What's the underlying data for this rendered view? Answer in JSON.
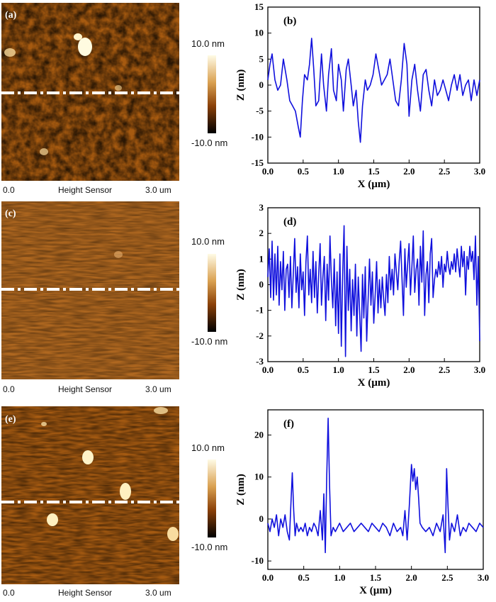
{
  "afm_panels": [
    {
      "letter": "(a)",
      "scale_top": "10.0 nm",
      "scale_bottom": "-10.0 nm",
      "x_start": "0.0",
      "x_title": "Height Sensor",
      "x_end": "3.0 um"
    },
    {
      "letter": "(c)",
      "scale_top": "10.0 nm",
      "scale_bottom": "-10.0 nm",
      "x_start": "0.0",
      "x_title": "Height Sensor",
      "x_end": "3.0 um"
    },
    {
      "letter": "(e)",
      "scale_top": "10.0 nm",
      "scale_bottom": "-10.0 nm",
      "x_start": "0.0",
      "x_title": "Height Sensor",
      "x_end": "3.0 um"
    }
  ],
  "chart_data": [
    {
      "type": "line",
      "panel": "(b)",
      "xlabel": "X (µm)",
      "ylabel": "Z (nm)",
      "xlim": [
        0,
        3
      ],
      "ylim": [
        -15,
        15
      ],
      "xticks": [
        0,
        0.5,
        1,
        1.5,
        2,
        2.5,
        3
      ],
      "xtick_labels": [
        "0.0",
        "0.5",
        "1.0",
        "1.5",
        "2.0",
        "2.5",
        "3.0"
      ],
      "yticks": [
        -15,
        -10,
        -5,
        0,
        5,
        10,
        15
      ],
      "ytick_labels": [
        "-15",
        "-10",
        "-5",
        "0",
        "5",
        "10",
        "15"
      ],
      "color": "#1010dd",
      "x": [
        0,
        0.03,
        0.06,
        0.1,
        0.14,
        0.18,
        0.22,
        0.27,
        0.31,
        0.35,
        0.39,
        0.43,
        0.46,
        0.49,
        0.52,
        0.56,
        0.59,
        0.62,
        0.65,
        0.68,
        0.72,
        0.76,
        0.79,
        0.83,
        0.86,
        0.9,
        0.93,
        0.97,
        1.0,
        1.04,
        1.07,
        1.11,
        1.14,
        1.18,
        1.21,
        1.25,
        1.28,
        1.31,
        1.34,
        1.38,
        1.41,
        1.45,
        1.49,
        1.53,
        1.57,
        1.61,
        1.65,
        1.69,
        1.73,
        1.77,
        1.81,
        1.85,
        1.89,
        1.93,
        1.97,
        2.0,
        2.04,
        2.08,
        2.12,
        2.16,
        2.2,
        2.24,
        2.28,
        2.32,
        2.36,
        2.4,
        2.44,
        2.48,
        2.52,
        2.56,
        2.6,
        2.64,
        2.68,
        2.72,
        2.76,
        2.8,
        2.84,
        2.88,
        2.92,
        2.96,
        3.0
      ],
      "y": [
        1,
        4,
        6,
        1,
        -1,
        0,
        5,
        1,
        -3,
        -4,
        -5,
        -8,
        -10,
        -3,
        2,
        1,
        4,
        9,
        3,
        -4,
        -3,
        6,
        0,
        -5,
        2,
        7,
        -1,
        -3,
        4,
        1,
        -5,
        3,
        5,
        0,
        -4,
        -1,
        -7,
        -11,
        -4,
        1,
        -1,
        0,
        2,
        6,
        3,
        0,
        1,
        2,
        5,
        1,
        -3,
        -4,
        1,
        8,
        4,
        -6,
        1,
        4,
        -1,
        -5,
        2,
        3,
        -1,
        -4,
        1,
        -2,
        -1,
        1,
        -1,
        -3,
        0,
        2,
        -1,
        2,
        -2,
        0,
        1,
        -3,
        1,
        -2,
        1
      ]
    },
    {
      "type": "line",
      "panel": "(d)",
      "xlabel": "X (µm)",
      "ylabel": "Z (nm)",
      "xlim": [
        0,
        3
      ],
      "ylim": [
        -3,
        3
      ],
      "xticks": [
        0,
        0.5,
        1,
        1.5,
        2,
        2.5,
        3
      ],
      "xtick_labels": [
        "0.0",
        "0.5",
        "1.0",
        "1.5",
        "2.0",
        "2.5",
        "3.0"
      ],
      "yticks": [
        -3,
        -2,
        -1,
        0,
        1,
        2,
        3
      ],
      "ytick_labels": [
        "-3",
        "-2",
        "-1",
        "0",
        "1",
        "2",
        "3"
      ],
      "color": "#1010dd",
      "x": [
        0,
        0.02,
        0.04,
        0.06,
        0.08,
        0.1,
        0.12,
        0.14,
        0.16,
        0.18,
        0.2,
        0.22,
        0.24,
        0.26,
        0.28,
        0.3,
        0.32,
        0.34,
        0.36,
        0.38,
        0.4,
        0.42,
        0.44,
        0.46,
        0.48,
        0.5,
        0.52,
        0.54,
        0.56,
        0.58,
        0.6,
        0.62,
        0.64,
        0.66,
        0.68,
        0.7,
        0.72,
        0.74,
        0.76,
        0.78,
        0.8,
        0.82,
        0.84,
        0.86,
        0.88,
        0.9,
        0.92,
        0.94,
        0.96,
        0.98,
        1.0,
        1.02,
        1.04,
        1.06,
        1.08,
        1.1,
        1.12,
        1.14,
        1.16,
        1.18,
        1.2,
        1.22,
        1.24,
        1.26,
        1.28,
        1.3,
        1.32,
        1.34,
        1.36,
        1.38,
        1.4,
        1.42,
        1.44,
        1.46,
        1.48,
        1.5,
        1.52,
        1.54,
        1.56,
        1.58,
        1.6,
        1.62,
        1.64,
        1.66,
        1.68,
        1.7,
        1.72,
        1.74,
        1.76,
        1.78,
        1.8,
        1.82,
        1.84,
        1.86,
        1.88,
        1.9,
        1.92,
        1.94,
        1.96,
        1.98,
        2.0,
        2.02,
        2.04,
        2.06,
        2.08,
        2.1,
        2.12,
        2.14,
        2.16,
        2.18,
        2.2,
        2.22,
        2.24,
        2.26,
        2.28,
        2.3,
        2.32,
        2.34,
        2.36,
        2.38,
        2.4,
        2.42,
        2.44,
        2.46,
        2.48,
        2.5,
        2.52,
        2.54,
        2.56,
        2.58,
        2.6,
        2.62,
        2.64,
        2.66,
        2.68,
        2.7,
        2.72,
        2.74,
        2.76,
        2.78,
        2.8,
        2.82,
        2.84,
        2.86,
        2.88,
        2.9,
        2.92,
        2.94,
        2.96,
        2.98,
        3.0
      ],
      "y": [
        0.3,
        1.4,
        -0.5,
        1.7,
        -0.6,
        1.2,
        -0.4,
        1.5,
        -0.8,
        0.9,
        -0.2,
        1.3,
        -1.0,
        0.6,
        0.8,
        -0.5,
        1.1,
        -0.9,
        0.4,
        1.8,
        -0.3,
        0.7,
        -0.9,
        1.2,
        -0.2,
        0.5,
        -1.2,
        0.9,
        1.9,
        -0.4,
        0.6,
        -0.7,
        1.3,
        -0.5,
        0.9,
        -1.1,
        0.4,
        1.6,
        -0.8,
        0.3,
        1.1,
        -1.4,
        0.8,
        -0.6,
        1.9,
        0.2,
        -0.9,
        1.0,
        -1.6,
        0.5,
        -1.9,
        1.2,
        -2.4,
        0.4,
        2.3,
        -2.8,
        1.5,
        -1.0,
        0.6,
        -1.8,
        0.2,
        -1.2,
        0.8,
        -2.0,
        0.3,
        -1.1,
        -2.6,
        0.4,
        -1.3,
        0.7,
        -2.2,
        -0.6,
        1.0,
        -0.8,
        0.5,
        -1.5,
        -0.4,
        0.9,
        -1.1,
        0.2,
        -0.9,
        0.3,
        -0.6,
        -1.2,
        0.4,
        -0.7,
        1.1,
        -0.2,
        0.6,
        -0.4,
        1.2,
        0.5,
        -0.2,
        0.9,
        1.7,
        0.2,
        -1.2,
        1.4,
        -0.1,
        0.8,
        1.6,
        -0.4,
        0.7,
        1.9,
        -0.3,
        0.6,
        1.0,
        -0.8,
        1.5,
        0.1,
        2.1,
        -1.2,
        0.4,
        0.9,
        -0.7,
        1.2,
        1.8,
        -0.5,
        0.2,
        0.6,
        0.3,
        0.9,
        0.4,
        1.1,
        -0.1,
        0.8,
        0.5,
        1.3,
        0.7,
        0.4,
        0.9,
        0.6,
        1.2,
        0.5,
        1.4,
        0.8,
        0.3,
        1.5,
        0.7,
        1.3,
        -0.4,
        1.1,
        0.6,
        1.5,
        0.9,
        1.3,
        0.2,
        1.9,
        -0.8,
        1.1,
        -2.2
      ]
    },
    {
      "type": "line",
      "panel": "(f)",
      "xlabel": "X (µm)",
      "ylabel": "Z (nm)",
      "xlim": [
        0,
        3
      ],
      "ylim": [
        -12,
        26
      ],
      "xticks": [
        0,
        0.5,
        1,
        1.5,
        2,
        2.5,
        3
      ],
      "xtick_labels": [
        "0.0",
        "0.5",
        "1.0",
        "1.5",
        "2.0",
        "2.5",
        "3.0"
      ],
      "yticks": [
        -10,
        0,
        10,
        20
      ],
      "ytick_labels": [
        "-10",
        "0",
        "10",
        "20"
      ],
      "color": "#1010dd",
      "x": [
        0,
        0.03,
        0.06,
        0.09,
        0.12,
        0.15,
        0.18,
        0.21,
        0.24,
        0.27,
        0.3,
        0.32,
        0.34,
        0.36,
        0.38,
        0.4,
        0.43,
        0.46,
        0.49,
        0.52,
        0.55,
        0.58,
        0.61,
        0.64,
        0.67,
        0.7,
        0.73,
        0.76,
        0.78,
        0.8,
        0.82,
        0.84,
        0.86,
        0.88,
        0.91,
        0.94,
        0.97,
        1.0,
        1.05,
        1.1,
        1.15,
        1.2,
        1.25,
        1.3,
        1.35,
        1.4,
        1.45,
        1.5,
        1.55,
        1.6,
        1.65,
        1.7,
        1.75,
        1.8,
        1.85,
        1.88,
        1.91,
        1.94,
        1.97,
        2.0,
        2.02,
        2.04,
        2.06,
        2.08,
        2.1,
        2.12,
        2.15,
        2.2,
        2.25,
        2.3,
        2.35,
        2.4,
        2.44,
        2.47,
        2.49,
        2.51,
        2.53,
        2.56,
        2.6,
        2.64,
        2.68,
        2.72,
        2.76,
        2.8,
        2.85,
        2.9,
        2.95,
        3.0
      ],
      "y": [
        -1,
        -3,
        0,
        -2,
        1,
        -4,
        0,
        -2,
        1,
        -3,
        -5,
        3,
        11,
        2,
        -4,
        -1,
        -3,
        -2,
        -3,
        -1,
        -4,
        -2,
        -3,
        -1,
        -2,
        -4,
        2,
        -5,
        6,
        -8,
        10,
        24,
        8,
        -4,
        -2,
        -3,
        -2,
        -1,
        -3,
        -2,
        -1,
        -3,
        -2,
        -1,
        -2,
        -3,
        -1,
        -2,
        -3,
        -1,
        -2,
        -4,
        -1,
        -3,
        -2,
        -4,
        2,
        -5,
        3,
        13,
        9,
        12,
        7,
        10,
        5,
        -1,
        -2,
        -3,
        -2,
        -4,
        -1,
        -3,
        1,
        -8,
        12,
        3,
        -5,
        -1,
        -3,
        1,
        -4,
        -2,
        -3,
        -1,
        -2,
        -3,
        -1,
        -2
      ]
    }
  ]
}
